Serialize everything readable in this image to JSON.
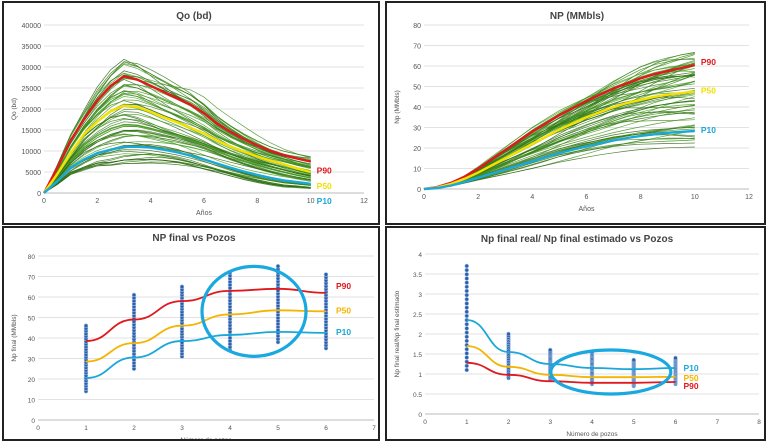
{
  "colors": {
    "p90": "#e0191e",
    "p50": "#f5e000",
    "p50_alt": "#f4b400",
    "p10": "#1aa8d8",
    "sim": "#3c7a1c",
    "highlight": "#1aa8e0"
  },
  "chart_data": [
    {
      "type": "line",
      "title": "Qo (bd)",
      "xlabel": "Años",
      "ylabel": "Qo (bd)",
      "xlim": [
        0,
        12
      ],
      "ylim": [
        0,
        40000
      ],
      "xticks": [
        "0",
        "2",
        "4",
        "6",
        "8",
        "10",
        "12"
      ],
      "yticks": [
        "0",
        "5000",
        "10000",
        "15000",
        "20000",
        "25000",
        "30000",
        "35000",
        "40000"
      ],
      "x": [
        0,
        0.5,
        1,
        1.5,
        2,
        2.5,
        3,
        3.5,
        4,
        4.5,
        5,
        5.5,
        6,
        6.5,
        7,
        7.5,
        8,
        8.5,
        9,
        9.5,
        10
      ],
      "series": [
        {
          "name": "P90",
          "values": [
            0,
            6000,
            12500,
            17500,
            22000,
            25500,
            27800,
            27000,
            25500,
            24000,
            22500,
            21000,
            19000,
            16500,
            14500,
            12800,
            11300,
            10000,
            9000,
            8200,
            7500
          ]
        },
        {
          "name": "P50",
          "values": [
            0,
            4500,
            9500,
            14000,
            17000,
            19500,
            20800,
            20500,
            19300,
            18000,
            16800,
            15500,
            14200,
            12500,
            11000,
            9800,
            8700,
            7700,
            6800,
            5800,
            5000
          ]
        },
        {
          "name": "P10",
          "values": [
            0,
            2800,
            6000,
            8000,
            9500,
            10300,
            11000,
            11000,
            10800,
            10300,
            9700,
            8900,
            8000,
            7000,
            6000,
            5100,
            4300,
            3600,
            3000,
            2600,
            2200
          ]
        }
      ],
      "grid": true
    },
    {
      "type": "line",
      "title": "NP (MMbls)",
      "xlabel": "Años",
      "ylabel": "Np (MMbls)",
      "xlim": [
        0,
        12
      ],
      "ylim": [
        0,
        80
      ],
      "xticks": [
        "0",
        "2",
        "4",
        "6",
        "8",
        "10",
        "12"
      ],
      "yticks": [
        "0",
        "10",
        "20",
        "30",
        "40",
        "50",
        "60",
        "70",
        "80"
      ],
      "x": [
        0,
        0.5,
        1,
        1.5,
        2,
        2.5,
        3,
        3.5,
        4,
        4.5,
        5,
        5.5,
        6,
        6.5,
        7,
        7.5,
        8,
        8.5,
        9,
        9.5,
        10
      ],
      "series": [
        {
          "name": "P90",
          "values": [
            0,
            1,
            3,
            6,
            10,
            14.5,
            19,
            23.5,
            28,
            32,
            36,
            39.5,
            43,
            46,
            49,
            51.5,
            54,
            56,
            57.5,
            59,
            60.5
          ]
        },
        {
          "name": "P50",
          "values": [
            0,
            0.8,
            2.5,
            5,
            8,
            11.5,
            15,
            18.5,
            22,
            25.5,
            29,
            32,
            35,
            37.5,
            40,
            42,
            43.5,
            45,
            46,
            46.8,
            47.5
          ]
        },
        {
          "name": "P10",
          "values": [
            0,
            0.5,
            1.7,
            3.5,
            5.5,
            7.5,
            9.5,
            11.5,
            13.5,
            15.5,
            17.5,
            19.2,
            20.8,
            22.3,
            23.7,
            24.9,
            25.9,
            26.7,
            27.4,
            27.9,
            28.3
          ]
        }
      ],
      "grid": true
    },
    {
      "type": "scatter",
      "title": "NP final vs Pozos",
      "xlabel": "Número de pozos",
      "ylabel": "Np final (MMbls)",
      "xlim": [
        0,
        7
      ],
      "ylim": [
        0,
        80
      ],
      "xticks": [
        "0",
        "1",
        "2",
        "3",
        "4",
        "5",
        "6",
        "7"
      ],
      "yticks": [
        "0",
        "10",
        "20",
        "30",
        "40",
        "50",
        "60",
        "70",
        "80"
      ],
      "categories": [
        1,
        2,
        3,
        4,
        5,
        6
      ],
      "point_ranges": [
        [
          14,
          46
        ],
        [
          25,
          61
        ],
        [
          31,
          65
        ],
        [
          34,
          72
        ],
        [
          38,
          75
        ],
        [
          35,
          71
        ]
      ],
      "series": [
        {
          "name": "P90",
          "values": [
            38.5,
            49,
            58,
            63,
            64,
            62
          ]
        },
        {
          "name": "P50",
          "values": [
            28.5,
            37.5,
            46,
            51.5,
            53.5,
            53
          ]
        },
        {
          "name": "P10",
          "values": [
            20.5,
            30.5,
            38.5,
            41.5,
            43,
            42.5
          ]
        }
      ],
      "grid": true
    },
    {
      "type": "scatter",
      "title": "Np final real/ Np final estimado vs Pozos",
      "xlabel": "Número de pozos",
      "ylabel": "Np final real/Np final estimado",
      "xlim": [
        0,
        8
      ],
      "ylim": [
        0,
        4
      ],
      "xticks": [
        "0",
        "1",
        "2",
        "3",
        "4",
        "5",
        "6",
        "7",
        "8"
      ],
      "yticks": [
        "0",
        "0.5",
        "1",
        "1.5",
        "2",
        "2.5",
        "3",
        "3.5",
        "4"
      ],
      "categories": [
        1,
        2,
        3,
        4,
        5,
        6
      ],
      "point_ranges": [
        [
          1.1,
          3.7
        ],
        [
          0.9,
          2
        ],
        [
          0.85,
          1.6
        ],
        [
          0.75,
          1.55
        ],
        [
          0.7,
          1.35
        ],
        [
          0.75,
          1.4
        ]
      ],
      "series": [
        {
          "name": "P10",
          "values": [
            2.35,
            1.55,
            1.25,
            1.15,
            1.12,
            1.15
          ]
        },
        {
          "name": "P50",
          "values": [
            1.7,
            1.18,
            0.98,
            0.92,
            0.92,
            0.93
          ]
        },
        {
          "name": "P90",
          "values": [
            1.28,
            0.98,
            0.82,
            0.78,
            0.78,
            0.8
          ]
        }
      ],
      "grid": true
    }
  ]
}
